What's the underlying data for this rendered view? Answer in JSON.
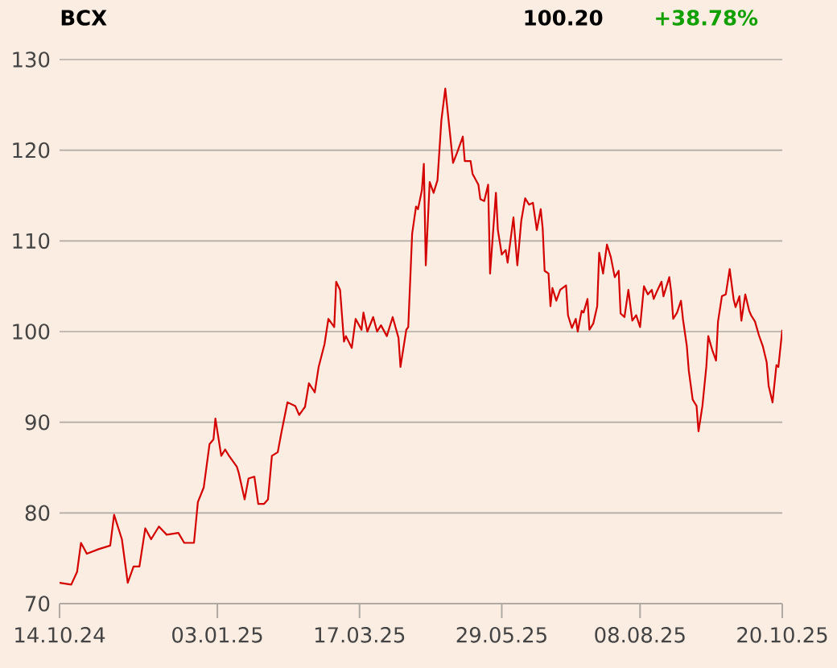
{
  "chart_data": {
    "type": "line",
    "title": "BCX",
    "annotations": [
      "100.20",
      "+38.78%"
    ],
    "xlim": [
      "2024-10-14",
      "2025-10-20"
    ],
    "xticks": [
      {
        "value": "2024-10-14",
        "label": "14.10.24"
      },
      {
        "value": "2025-01-03",
        "label": "03.01.25"
      },
      {
        "value": "2025-03-17",
        "label": "17.03.25"
      },
      {
        "value": "2025-05-29",
        "label": "29.05.25"
      },
      {
        "value": "2025-08-08",
        "label": "08.08.25"
      },
      {
        "value": "2025-10-20",
        "label": "20.10.25"
      }
    ],
    "ylim": [
      70,
      130
    ],
    "yticks": [
      70,
      80,
      90,
      100,
      110,
      120,
      130
    ],
    "grid": "y",
    "marker": "none",
    "series": [
      {
        "type": "line",
        "color": "#d40000",
        "x": [
          "2024-10-14",
          "2024-10-20",
          "2024-10-23",
          "2024-10-25",
          "2024-10-28",
          "2024-11-03",
          "2024-11-09",
          "2024-11-11",
          "2024-11-15",
          "2024-11-18",
          "2024-11-21",
          "2024-11-24",
          "2024-11-27",
          "2024-11-30",
          "2024-12-04",
          "2024-12-08",
          "2024-12-14",
          "2024-12-17",
          "2024-12-22",
          "2024-12-24",
          "2024-12-27",
          "2024-12-30",
          "2025-01-01",
          "2025-01-02",
          "2025-01-05",
          "2025-01-07",
          "2025-01-09",
          "2025-01-13",
          "2025-01-14",
          "2025-01-17",
          "2025-01-19",
          "2025-01-22",
          "2025-01-24",
          "2025-01-27",
          "2025-01-29",
          "2025-01-31",
          "2025-02-03",
          "2025-02-05",
          "2025-02-08",
          "2025-02-12",
          "2025-02-14",
          "2025-02-17",
          "2025-02-19",
          "2025-02-22",
          "2025-02-24",
          "2025-02-27",
          "2025-03-01",
          "2025-03-04",
          "2025-03-05",
          "2025-03-07",
          "2025-03-09",
          "2025-03-10",
          "2025-03-13",
          "2025-03-15",
          "2025-03-18",
          "2025-03-19",
          "2025-03-21",
          "2025-03-24",
          "2025-03-26",
          "2025-03-28",
          "2025-03-31",
          "2025-04-03",
          "2025-04-06",
          "2025-04-07",
          "2025-04-10",
          "2025-04-11",
          "2025-04-13",
          "2025-04-15",
          "2025-04-16",
          "2025-04-18",
          "2025-04-19",
          "2025-04-20",
          "2025-04-22",
          "2025-04-24",
          "2025-04-26",
          "2025-04-28",
          "2025-04-30",
          "2025-05-04",
          "2025-05-06",
          "2025-05-09",
          "2025-05-10",
          "2025-05-13",
          "2025-05-14",
          "2025-05-17",
          "2025-05-18",
          "2025-05-20",
          "2025-05-22",
          "2025-05-23",
          "2025-05-26",
          "2025-05-27",
          "2025-05-29",
          "2025-05-31",
          "2025-06-01",
          "2025-06-04",
          "2025-06-06",
          "2025-06-08",
          "2025-06-10",
          "2025-06-12",
          "2025-06-14",
          "2025-06-16",
          "2025-06-18",
          "2025-06-19",
          "2025-06-20",
          "2025-06-22",
          "2025-06-23",
          "2025-06-24",
          "2025-06-26",
          "2025-06-28",
          "2025-07-01",
          "2025-07-02",
          "2025-07-04",
          "2025-07-06",
          "2025-07-07",
          "2025-07-09",
          "2025-07-10",
          "2025-07-12",
          "2025-07-13",
          "2025-07-15",
          "2025-07-17",
          "2025-07-18",
          "2025-07-20",
          "2025-07-22",
          "2025-07-24",
          "2025-07-26",
          "2025-07-28",
          "2025-07-29",
          "2025-07-31",
          "2025-08-02",
          "2025-08-04",
          "2025-08-06",
          "2025-08-08",
          "2025-08-10",
          "2025-08-12",
          "2025-08-14",
          "2025-08-15",
          "2025-08-17",
          "2025-08-19",
          "2025-08-20",
          "2025-08-23",
          "2025-08-24",
          "2025-08-25",
          "2025-08-27",
          "2025-08-29",
          "2025-08-30",
          "2025-09-01",
          "2025-09-02",
          "2025-09-04",
          "2025-09-06",
          "2025-09-07",
          "2025-09-09",
          "2025-09-11",
          "2025-09-12",
          "2025-09-14",
          "2025-09-16",
          "2025-09-17",
          "2025-09-19",
          "2025-09-21",
          "2025-09-23",
          "2025-09-25",
          "2025-09-26",
          "2025-09-28",
          "2025-09-29",
          "2025-10-01",
          "2025-10-03",
          "2025-10-04",
          "2025-10-06",
          "2025-10-08",
          "2025-10-10",
          "2025-10-12",
          "2025-10-13",
          "2025-10-15",
          "2025-10-17",
          "2025-10-18",
          "2025-10-20"
        ],
        "values": [
          72.3,
          72.1,
          73.5,
          76.7,
          75.5,
          76.0,
          76.4,
          79.8,
          77.1,
          72.3,
          74.1,
          74.1,
          78.3,
          77.1,
          78.5,
          77.6,
          77.8,
          76.7,
          76.7,
          81.2,
          82.8,
          87.6,
          88.1,
          90.4,
          86.3,
          87.0,
          86.3,
          85.1,
          84.4,
          81.5,
          83.8,
          84.0,
          81.0,
          81.0,
          81.5,
          86.3,
          86.7,
          89.0,
          92.2,
          91.8,
          90.8,
          91.7,
          94.3,
          93.3,
          96.1,
          98.6,
          101.4,
          100.5,
          105.5,
          104.6,
          98.9,
          99.5,
          98.2,
          101.4,
          100.2,
          102.1,
          100.0,
          101.6,
          100.0,
          100.7,
          99.5,
          101.6,
          99.3,
          96.1,
          100.2,
          100.5,
          110.8,
          113.8,
          113.5,
          115.6,
          118.5,
          107.3,
          116.5,
          115.3,
          116.7,
          123.3,
          126.8,
          118.6,
          119.7,
          121.5,
          118.8,
          118.8,
          117.4,
          116.2,
          114.6,
          114.4,
          116.2,
          106.4,
          115.3,
          111.2,
          108.5,
          109.0,
          107.6,
          112.6,
          107.3,
          112.2,
          114.7,
          114.0,
          114.2,
          111.2,
          113.5,
          111.4,
          106.7,
          106.4,
          102.8,
          104.8,
          103.4,
          104.6,
          105.1,
          101.8,
          100.4,
          101.4,
          100.0,
          102.3,
          102.1,
          103.6,
          100.2,
          100.9,
          102.8,
          108.7,
          106.4,
          109.6,
          108.2,
          106.0,
          106.7,
          102.0,
          101.6,
          104.6,
          101.2,
          101.8,
          100.5,
          105.0,
          104.1,
          104.6,
          103.6,
          104.6,
          105.5,
          103.9,
          106.0,
          104.3,
          101.4,
          102.1,
          103.4,
          101.4,
          98.4,
          95.7,
          92.5,
          91.8,
          89.0,
          91.8,
          96.1,
          99.5,
          98.0,
          96.8,
          101.1,
          103.9,
          104.1,
          106.9,
          103.6,
          102.7,
          103.9,
          101.2,
          104.1,
          102.3,
          101.8,
          101.1,
          99.6,
          98.4,
          96.6,
          94.0,
          92.2,
          96.3,
          96.1,
          100.2
        ]
      }
    ]
  }
}
